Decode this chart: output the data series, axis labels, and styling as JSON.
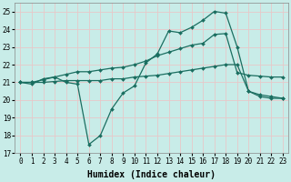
{
  "xlabel": "Humidex (Indice chaleur)",
  "ylabel": "",
  "xlim": [
    -0.5,
    23.5
  ],
  "ylim": [
    17,
    25.5
  ],
  "yticks": [
    17,
    18,
    19,
    20,
    21,
    22,
    23,
    24,
    25
  ],
  "xticks": [
    0,
    1,
    2,
    3,
    4,
    5,
    6,
    7,
    8,
    9,
    10,
    11,
    12,
    13,
    14,
    15,
    16,
    17,
    18,
    19,
    20,
    21,
    22,
    23
  ],
  "bg_color": "#c8ece8",
  "grid_color": "#e8c8c8",
  "line_color": "#1a6e60",
  "line1_x": [
    0,
    1,
    2,
    3,
    4,
    5,
    6,
    7,
    8,
    9,
    10,
    11,
    12,
    13,
    14,
    15,
    16,
    17,
    18,
    19,
    20,
    21,
    22,
    23
  ],
  "line1_y": [
    21.0,
    20.9,
    21.2,
    21.3,
    21.0,
    20.9,
    17.5,
    18.0,
    19.5,
    20.4,
    20.8,
    22.1,
    22.6,
    23.9,
    23.8,
    24.1,
    24.5,
    25.0,
    24.9,
    23.0,
    20.5,
    20.2,
    20.1,
    20.1
  ],
  "line2_x": [
    0,
    1,
    2,
    3,
    4,
    5,
    6,
    7,
    8,
    9,
    10,
    11,
    12,
    13,
    14,
    15,
    16,
    17,
    18,
    19,
    20,
    21,
    22,
    23
  ],
  "line2_y": [
    21.0,
    21.0,
    21.15,
    21.3,
    21.45,
    21.6,
    21.6,
    21.7,
    21.8,
    21.85,
    22.0,
    22.2,
    22.5,
    22.7,
    22.9,
    23.1,
    23.2,
    23.7,
    23.75,
    21.55,
    21.4,
    21.35,
    21.3,
    21.3
  ],
  "line3_x": [
    0,
    1,
    2,
    3,
    4,
    5,
    6,
    7,
    8,
    9,
    10,
    11,
    12,
    13,
    14,
    15,
    16,
    17,
    18,
    19,
    20,
    21,
    22,
    23
  ],
  "line3_y": [
    21.0,
    21.0,
    21.0,
    21.05,
    21.1,
    21.1,
    21.1,
    21.1,
    21.2,
    21.2,
    21.3,
    21.35,
    21.4,
    21.5,
    21.6,
    21.7,
    21.8,
    21.9,
    22.0,
    22.0,
    20.5,
    20.3,
    20.2,
    20.1
  ],
  "marker": "D",
  "markersize": 2.0,
  "linewidth": 0.9,
  "tick_fontsize": 5.5,
  "xlabel_fontsize": 7.0
}
